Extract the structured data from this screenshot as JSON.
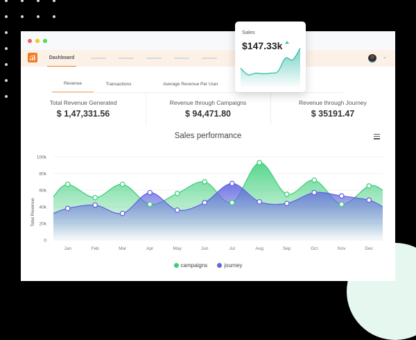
{
  "app": {
    "nav": {
      "active_label": "Dashboard",
      "placeholder_count": 5
    },
    "user_menu": {
      "avatar": "user-avatar",
      "chevron": "⌄"
    }
  },
  "tabs": [
    {
      "label": "Revenue",
      "active": true
    },
    {
      "label": "Transactions",
      "active": false
    },
    {
      "label": "Average Revenue Per User",
      "active": false
    }
  ],
  "stats": [
    {
      "label": "Total Revenue Generated",
      "value": "$ 1,47,331.56"
    },
    {
      "label": "Revenue through Campaigns",
      "value": "$ 94,471.80"
    },
    {
      "label": "Revenue through Journey",
      "value": "$ 35191.47"
    }
  ],
  "sales_card": {
    "label": "Sales",
    "value": "$147.33k",
    "trend": "up",
    "color": "#3dbfae"
  },
  "chart": {
    "title": "Sales performance",
    "menu_icon": "hamburger-menu-icon"
  },
  "colors": {
    "accent": "#f07c22",
    "campaigns": "#3ecf7a",
    "journey": "#6366e0",
    "teal": "#3dbfae"
  },
  "chart_data": {
    "type": "area",
    "title": "Sales performance",
    "xlabel": "",
    "ylabel": "Total Revenue",
    "categories": [
      "Jan",
      "Feb",
      "Mar",
      "Apr",
      "May",
      "Jun",
      "Jul",
      "Aug",
      "Sep",
      "Oct",
      "Nov",
      "Dec"
    ],
    "y_ticks": [
      "0",
      "20k",
      "40k",
      "60k",
      "80k",
      "100k"
    ],
    "ylim": [
      0,
      100000
    ],
    "grid": true,
    "legend_position": "bottom",
    "series": [
      {
        "name": "campaigns",
        "color": "#3ecf7a",
        "start": 52000,
        "end": 60000,
        "values": [
          67000,
          51000,
          67000,
          43000,
          56000,
          70000,
          45000,
          93000,
          55000,
          72000,
          43000,
          65000
        ]
      },
      {
        "name": "journey",
        "color": "#6366e0",
        "start": 32000,
        "end": 40000,
        "values": [
          38000,
          42000,
          32000,
          57000,
          36000,
          45000,
          68000,
          46000,
          44000,
          57000,
          53000,
          48000
        ]
      }
    ]
  },
  "legend": [
    {
      "label": "campaigns",
      "color": "#3ecf7a"
    },
    {
      "label": "journey",
      "color": "#6366e0"
    }
  ],
  "sparkline": [
    0.65,
    0.85,
    0.8,
    0.82,
    0.8,
    0.75,
    0.35,
    0.4,
    0.05
  ]
}
